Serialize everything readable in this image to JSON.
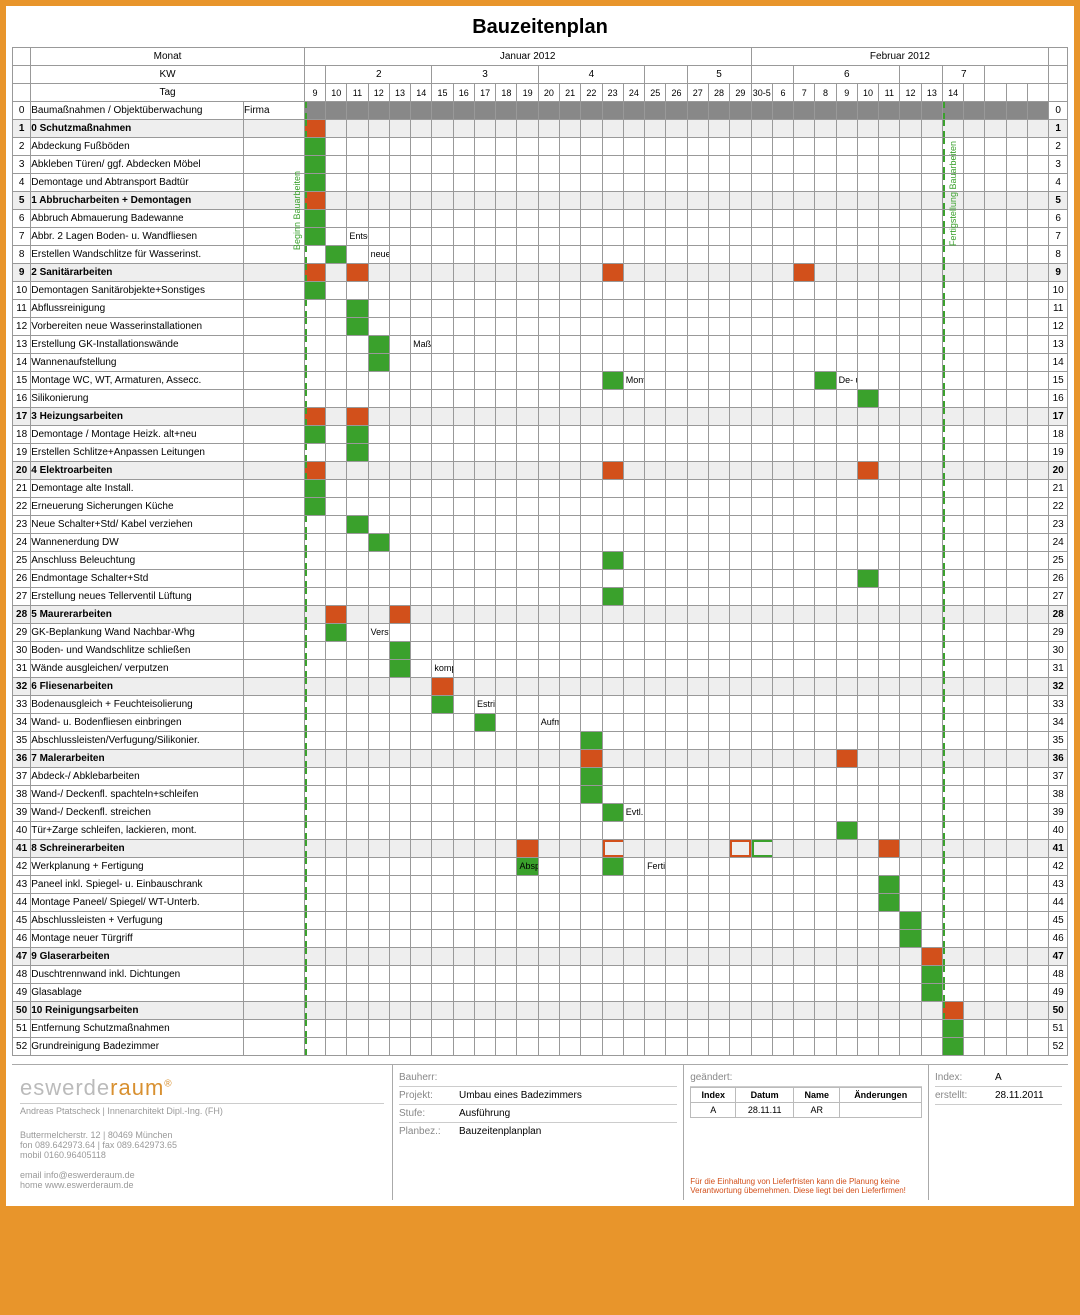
{
  "title": "Bauzeitenplan",
  "header": {
    "monat_label": "Monat",
    "kw_label": "KW",
    "tag_label": "Tag",
    "firma_label": "Firma",
    "months": [
      {
        "label": "Januar 2012",
        "span": 21
      },
      {
        "label": "Februar 2012",
        "span": 14
      }
    ],
    "weeks": [
      {
        "label": "",
        "span": 1
      },
      {
        "label": "2",
        "span": 5
      },
      {
        "label": "3",
        "span": 5
      },
      {
        "label": "4",
        "span": 5
      },
      {
        "label": "",
        "span": 2
      },
      {
        "label": "5",
        "span": 3
      },
      {
        "label": "",
        "span": 2
      },
      {
        "label": "6",
        "span": 5
      },
      {
        "label": "",
        "span": 2
      },
      {
        "label": "7",
        "span": 2
      },
      {
        "label": "",
        "span": 3
      }
    ],
    "days": [
      "9",
      "10",
      "11",
      "12",
      "13",
      "14",
      "15",
      "16",
      "17",
      "18",
      "19",
      "20",
      "21",
      "22",
      "23",
      "24",
      "25",
      "26",
      "27",
      "28",
      "29",
      "30-5",
      "6",
      "7",
      "8",
      "9",
      "10",
      "11",
      "12",
      "13",
      "14",
      "",
      "",
      "",
      " "
    ]
  },
  "side_labels": {
    "left": "Beginn Bauarbeiten",
    "right": "Fertigstellung Bauarbeiten"
  },
  "vlines": {
    "left_col": 0,
    "right_col": 30
  },
  "colors": {
    "green": "#3aa12c",
    "orange": "#d2501b",
    "gray_header": "#888888",
    "shade": "#eeeeee",
    "border": "#999999",
    "frame": "#e8952b"
  },
  "rows": [
    {
      "n": 0,
      "label": "Baumaßnahmen / Objektüberwachung",
      "bold": false,
      "shade": false,
      "header_gray": true,
      "bars": []
    },
    {
      "n": 1,
      "label": "0 Schutzmaßnahmen",
      "bold": true,
      "shade": true,
      "bars": [
        {
          "start": 0,
          "len": 1,
          "cls": "orange"
        }
      ]
    },
    {
      "n": 2,
      "label": "Abdeckung Fußböden",
      "bars": [
        {
          "start": 0,
          "len": 1,
          "cls": "green"
        }
      ]
    },
    {
      "n": 3,
      "label": "Abkleben Türen/ ggf. Abdecken Möbel",
      "bars": [
        {
          "start": 0,
          "len": 1,
          "cls": "green"
        }
      ]
    },
    {
      "n": 4,
      "label": "Demontage und Abtransport Badtür",
      "bars": [
        {
          "start": 0,
          "len": 1,
          "cls": "green"
        }
      ]
    },
    {
      "n": 5,
      "label": "1 Abbrucharbeiten + Demontagen",
      "bold": true,
      "shade": true,
      "bars": [
        {
          "start": 0,
          "len": 2,
          "cls": "orange"
        }
      ]
    },
    {
      "n": 6,
      "label": "Abbruch Abmauerung Badewanne",
      "bars": [
        {
          "start": 0,
          "len": 1,
          "cls": "green"
        }
      ]
    },
    {
      "n": 7,
      "label": "Abbr. 2 Lagen Boden- u. Wandfliesen",
      "bars": [
        {
          "start": 0,
          "len": 2,
          "cls": "green"
        }
      ],
      "note": {
        "col": 2,
        "text": "Entscheidung, ob Abbruch Fliesenbett"
      }
    },
    {
      "n": 8,
      "label": "Erstellen Wandschlitze für Wasserinst.",
      "bars": [
        {
          "start": 1,
          "len": 1,
          "cls": "green"
        }
      ],
      "note": {
        "col": 3,
        "text": "neue Pos. Wasserzähler prüfen"
      }
    },
    {
      "n": 9,
      "label": "2 Sanitärarbeiten",
      "bold": true,
      "shade": true,
      "bars": [
        {
          "start": 0,
          "len": 1,
          "cls": "orange"
        },
        {
          "start": 2,
          "len": 2,
          "cls": "orange"
        },
        {
          "start": 14,
          "len": 1,
          "cls": "orange"
        },
        {
          "start": 23,
          "len": 2,
          "cls": "orange"
        }
      ]
    },
    {
      "n": 10,
      "label": "Demontagen Sanitärobjekte+Sonstiges",
      "bars": [
        {
          "start": 0,
          "len": 1,
          "cls": "green"
        }
      ]
    },
    {
      "n": 11,
      "label": "Abflussreinigung",
      "bars": [
        {
          "start": 2,
          "len": 1,
          "cls": "green"
        }
      ]
    },
    {
      "n": 12,
      "label": "Vorbereiten neue Wasserinstallationen",
      "bars": [
        {
          "start": 2,
          "len": 1,
          "cls": "green"
        }
      ]
    },
    {
      "n": 13,
      "label": "Erstellung GK-Installationswände",
      "bars": [
        {
          "start": 3,
          "len": 1,
          "cls": "green"
        }
      ],
      "note": {
        "col": 5,
        "text": "Maße / Absprache Schreiner!"
      }
    },
    {
      "n": 14,
      "label": "Wannenaufstellung",
      "bars": [
        {
          "start": 3,
          "len": 1,
          "cls": "green"
        }
      ]
    },
    {
      "n": 15,
      "label": "Montage WC, WT, Armaturen, Assecc.",
      "bars": [
        {
          "start": 14,
          "len": 1,
          "cls": "green"
        },
        {
          "start": 24,
          "len": 1,
          "cls": "green"
        }
      ],
      "note": {
        "col": 15,
        "text": "Montage WC + Duscharmaturen"
      },
      "note2": {
        "col": 25,
        "text": "De- u. Wiedermontage WC"
      }
    },
    {
      "n": 16,
      "label": "Silikonierung",
      "bars": [
        {
          "start": 26,
          "len": 1,
          "cls": "green"
        }
      ]
    },
    {
      "n": 17,
      "label": "3 Heizungsarbeiten",
      "bold": true,
      "shade": true,
      "bars": [
        {
          "start": 0,
          "len": 1,
          "cls": "orange"
        },
        {
          "start": 2,
          "len": 1,
          "cls": "orange"
        }
      ]
    },
    {
      "n": 18,
      "label": "Demontage / Montage Heizk. alt+neu",
      "bars": [
        {
          "start": 0,
          "len": 1,
          "cls": "green"
        },
        {
          "start": 2,
          "len": 1,
          "cls": "green"
        }
      ]
    },
    {
      "n": 19,
      "label": "Erstellen Schlitze+Anpassen Leitungen",
      "bars": [
        {
          "start": 2,
          "len": 1,
          "cls": "green"
        }
      ]
    },
    {
      "n": 20,
      "label": "4 Elektroarbeiten",
      "bold": true,
      "shade": true,
      "bars": [
        {
          "start": 0,
          "len": 4,
          "cls": "orange"
        },
        {
          "start": 14,
          "len": 1,
          "cls": "orange"
        },
        {
          "start": 26,
          "len": 1,
          "cls": "orange"
        }
      ]
    },
    {
      "n": 21,
      "label": "Demontage alte Install.",
      "bars": [
        {
          "start": 0,
          "len": 1,
          "cls": "green"
        }
      ]
    },
    {
      "n": 22,
      "label": "Erneuerung Sicherungen Küche",
      "bars": [
        {
          "start": 0,
          "len": 1,
          "cls": "green"
        }
      ]
    },
    {
      "n": 23,
      "label": "Neue Schalter+Std/ Kabel verziehen",
      "bars": [
        {
          "start": 2,
          "len": 2,
          "cls": "green"
        }
      ]
    },
    {
      "n": 24,
      "label": "Wannenerdung DW",
      "bars": [
        {
          "start": 3,
          "len": 1,
          "cls": "green"
        }
      ]
    },
    {
      "n": 25,
      "label": "Anschluss Beleuchtung",
      "bars": [
        {
          "start": 14,
          "len": 1,
          "cls": "green"
        }
      ]
    },
    {
      "n": 26,
      "label": "Endmontage Schalter+Std",
      "bars": [
        {
          "start": 26,
          "len": 1,
          "cls": "green"
        }
      ]
    },
    {
      "n": 27,
      "label": "Erstellung neues Tellerventil Lüftung",
      "bars": [
        {
          "start": 14,
          "len": 1,
          "cls": "green"
        }
      ]
    },
    {
      "n": 28,
      "label": "5 Maurerarbeiten",
      "bold": true,
      "shade": true,
      "bars": [
        {
          "start": 1,
          "len": 2,
          "cls": "orange"
        },
        {
          "start": 4,
          "len": 2,
          "cls": "orange"
        }
      ]
    },
    {
      "n": 29,
      "label": "GK-Beplankung Wand Nachbar-Whg",
      "bars": [
        {
          "start": 1,
          "len": 2,
          "cls": "green"
        }
      ],
      "note": {
        "col": 3,
        "text": "Verstärkung!"
      }
    },
    {
      "n": 30,
      "label": "Boden- und Wandschlitze schließen",
      "bars": [
        {
          "start": 4,
          "len": 1,
          "cls": "green"
        }
      ]
    },
    {
      "n": 31,
      "label": "Wände ausgleichen/ verputzen",
      "bars": [
        {
          "start": 4,
          "len": 2,
          "cls": "green"
        }
      ],
      "note": {
        "col": 6,
        "text": "komplett neu verputzen, wenn erforderlich"
      }
    },
    {
      "n": 32,
      "label": "6 Fliesenarbeiten",
      "bold": true,
      "shade": true,
      "bars": [
        {
          "start": 6,
          "len": 5,
          "cls": "orange"
        }
      ]
    },
    {
      "n": 33,
      "label": "Bodenausgleich + Feuchteisolierung",
      "bars": [
        {
          "start": 6,
          "len": 2,
          "cls": "green"
        }
      ],
      "note": {
        "col": 8,
        "text": "Estricherneuerung komplett, wenn erforderlich"
      }
    },
    {
      "n": 34,
      "label": "Wand- u. Bodenfliesen einbringen",
      "bars": [
        {
          "start": 8,
          "len": 3,
          "cls": "green"
        }
      ],
      "note": {
        "col": 11,
        "text": "Aufmaß Schreiner+Glaser"
      }
    },
    {
      "n": 35,
      "label": "Abschlussleisten/Verfugung/Silikonier.",
      "bars": [
        {
          "start": 13,
          "len": 1,
          "cls": "green"
        }
      ]
    },
    {
      "n": 36,
      "label": "7 Malerarbeiten",
      "bold": true,
      "shade": true,
      "bars": [
        {
          "start": 13,
          "len": 2,
          "cls": "orange"
        },
        {
          "start": 25,
          "len": 2,
          "cls": "orange"
        }
      ]
    },
    {
      "n": 37,
      "label": "Abdeck-/ Abklebarbeiten",
      "bars": [
        {
          "start": 13,
          "len": 1,
          "cls": "green"
        }
      ]
    },
    {
      "n": 38,
      "label": "Wand-/ Deckenfl. spachteln+schleifen",
      "bars": [
        {
          "start": 13,
          "len": 1,
          "cls": "green"
        }
      ]
    },
    {
      "n": 39,
      "label": "Wand-/ Deckenfl. streichen",
      "bars": [
        {
          "start": 14,
          "len": 1,
          "cls": "green"
        }
      ],
      "note": {
        "col": 15,
        "text": "Evtl. Streichen Flur"
      }
    },
    {
      "n": 40,
      "label": "Tür+Zarge schleifen, lackieren, mont.",
      "bars": [
        {
          "start": 25,
          "len": 2,
          "cls": "green"
        }
      ]
    },
    {
      "n": 41,
      "label": "8 Schreinerarbeiten",
      "bold": true,
      "shade": true,
      "bars": [
        {
          "start": 10,
          "len": 3,
          "cls": "orange"
        },
        {
          "start": 14,
          "len": 5,
          "cls": "outline-orange"
        },
        {
          "start": 20,
          "len": 1,
          "cls": "outline-orange"
        },
        {
          "start": 21,
          "len": 4,
          "cls": "outline-green"
        },
        {
          "start": 27,
          "len": 2,
          "cls": "orange"
        }
      ]
    },
    {
      "n": 42,
      "label": "Werkplanung + Fertigung",
      "bars": [
        {
          "start": 10,
          "len": 3,
          "cls": "green"
        },
        {
          "start": 14,
          "len": 5,
          "cls": "green"
        }
      ],
      "note": {
        "col": 10,
        "text": "Absprache Glaser"
      },
      "note2": {
        "col": 16,
        "text": "Fertigung"
      }
    },
    {
      "n": 43,
      "label": "Paneel inkl. Spiegel- u. Einbauschrank",
      "bars": [
        {
          "start": 27,
          "len": 1,
          "cls": "green"
        }
      ]
    },
    {
      "n": 44,
      "label": "Montage Paneel/ Spiegel/ WT-Unterb.",
      "bars": [
        {
          "start": 27,
          "len": 2,
          "cls": "green"
        }
      ]
    },
    {
      "n": 45,
      "label": "Abschlussleisten + Verfugung",
      "bars": [
        {
          "start": 28,
          "len": 1,
          "cls": "green"
        }
      ]
    },
    {
      "n": 46,
      "label": "Montage neuer Türgriff",
      "bars": [
        {
          "start": 28,
          "len": 1,
          "cls": "green"
        }
      ]
    },
    {
      "n": 47,
      "label": "9 Glaserarbeiten",
      "bold": true,
      "shade": true,
      "bars": [
        {
          "start": 29,
          "len": 1,
          "cls": "orange"
        }
      ]
    },
    {
      "n": 48,
      "label": "Duschtrennwand inkl. Dichtungen",
      "bars": [
        {
          "start": 29,
          "len": 1,
          "cls": "green"
        }
      ]
    },
    {
      "n": 49,
      "label": "Glasablage",
      "bars": [
        {
          "start": 29,
          "len": 1,
          "cls": "green"
        }
      ]
    },
    {
      "n": 50,
      "label": "10 Reinigungsarbeiten",
      "bold": true,
      "shade": true,
      "bars": [
        {
          "start": 30,
          "len": 1,
          "cls": "orange"
        }
      ]
    },
    {
      "n": 51,
      "label": "Entfernung Schutzmaßnahmen",
      "bars": [
        {
          "start": 30,
          "len": 1,
          "cls": "green"
        }
      ]
    },
    {
      "n": 52,
      "label": "Grundreinigung Badezimmer",
      "bars": [
        {
          "start": 30,
          "len": 1,
          "cls": "green"
        }
      ]
    }
  ],
  "footer": {
    "brand_gray": "eswerde",
    "brand_orange": "raum",
    "brand_sub": "Andreas Ptatscheck | Innenarchitekt Dipl.-Ing. (FH)",
    "addr": "Buttermelcherstr. 12 | 80469 München\nfon 089.642973.64 | fax 089.642973.65\nmobil 0160.96405118",
    "contact": "email info@eswerderaum.de\nhome www.eswerderaum.de",
    "bauherr_lbl": "Bauherr:",
    "projekt_lbl": "Projekt:",
    "projekt_val": "Umbau eines Badezimmers",
    "stufe_lbl": "Stufe:",
    "stufe_val": "Ausführung",
    "planbez_lbl": "Planbez.:",
    "planbez_val": "Bauzeitenplanplan",
    "geaendert_lbl": "geändert:",
    "erstellt_lbl": "erstellt:",
    "erstellt_val": "28.11.2011",
    "index_lbl": "Index:",
    "index_val": "A",
    "revtable": {
      "cols": [
        "Index",
        "Datum",
        "Name",
        "Änderungen"
      ],
      "row": [
        "A",
        "28.11.11",
        "AR",
        ""
      ]
    },
    "disclaimer": "Für die Einhaltung von Lieferfristen kann die Planung keine Verantwortung übernehmen. Diese liegt bei den Lieferfirmen!"
  }
}
